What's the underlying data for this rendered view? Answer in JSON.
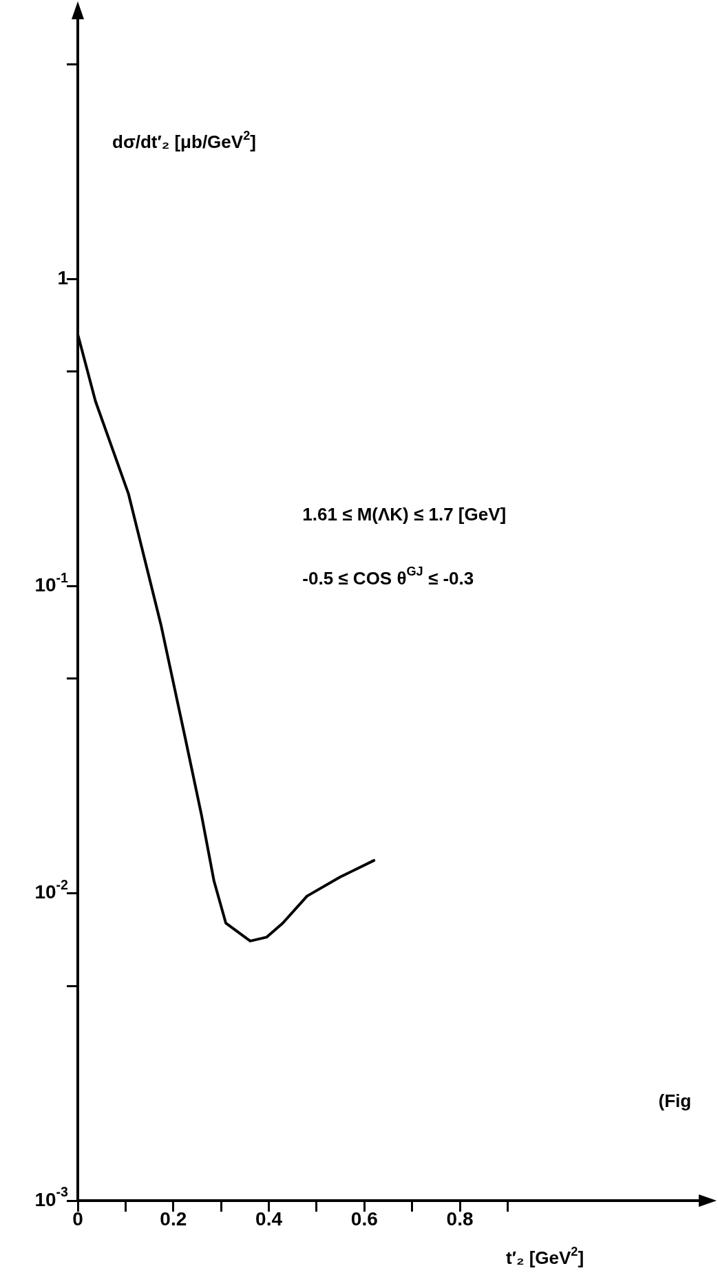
{
  "chart_data": {
    "type": "line",
    "ylabel": "dσ/dt′₂ [μb/GeV$^{2}$]",
    "xlabel": "t′₂ [GeV$^{2}$]",
    "annotations": [
      "1.61 ≤ M(ΛK) ≤ 1.7 [GeV]",
      "-0.5 ≤ COS θ$^{GJ}$ ≤ -0.3",
      "(Fig"
    ],
    "x": [
      0,
      0.037,
      0.106,
      0.174,
      0.225,
      0.259,
      0.285,
      0.31,
      0.361,
      0.395,
      0.429,
      0.48,
      0.549,
      0.62
    ],
    "series": [
      {
        "color": "#000000",
        "values": [
          0.66,
          0.4,
          0.2,
          0.075,
          0.032,
          0.018,
          0.011,
          0.008,
          0.007,
          0.0072,
          0.008,
          0.0098,
          0.0113,
          0.0128
        ]
      }
    ],
    "log": "y",
    "xlim": [
      0,
      1.3
    ],
    "ylim": [
      0.001,
      7
    ],
    "xticks": [
      0,
      {
        "value": 0.1,
        "label": null
      },
      0.2,
      {
        "value": 0.3,
        "label": null
      },
      0.4,
      {
        "value": 0.5,
        "label": null
      },
      0.6,
      {
        "value": 0.7,
        "label": null
      },
      0.8,
      {
        "value": 0.9,
        "label": null
      }
    ],
    "yticks": [
      {
        "value": 0.001,
        "label": "10$^{-3}$"
      },
      {
        "value": 0.005,
        "label": null
      },
      {
        "value": 0.01,
        "label": "10$^{-2}$"
      },
      {
        "value": 0.05,
        "label": null
      },
      {
        "value": 0.1,
        "label": "10$^{-1}$"
      },
      {
        "value": 0.5,
        "label": null
      },
      1,
      {
        "value": 5,
        "label": null
      }
    ],
    "grid": false,
    "legend": false,
    "marker": "none",
    "line_style": "solid"
  }
}
